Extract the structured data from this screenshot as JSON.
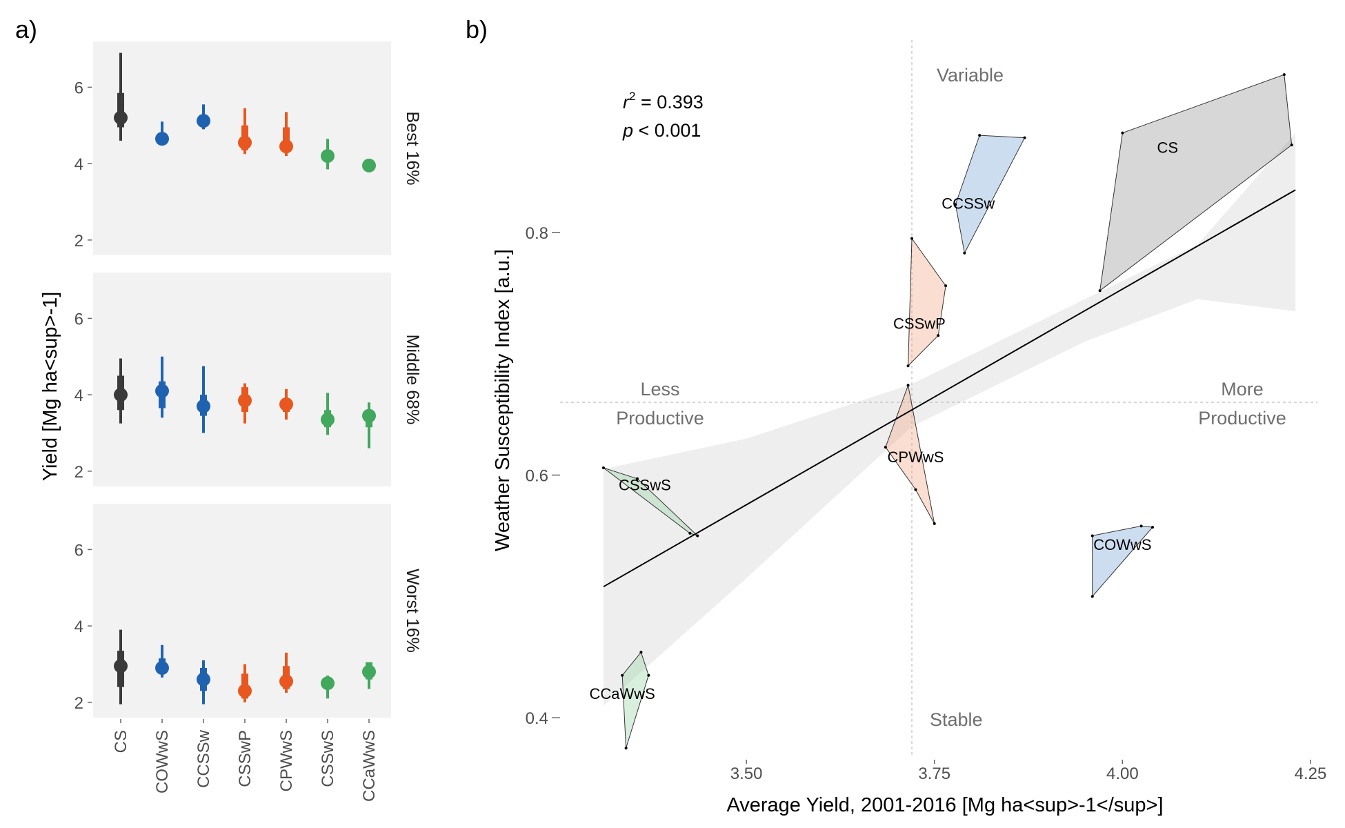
{
  "panel_a_label": "a)",
  "panel_b_label": "b)",
  "chart_data": [
    {
      "type": "pointrange",
      "panel": "a)",
      "ylabel": "Yield [Mg ha<sup>-1]",
      "ylim": [
        1.6,
        7.2
      ],
      "yticks": [
        "2",
        "4",
        "6"
      ],
      "categories": [
        "CS",
        "COWwS",
        "CCSSw",
        "CSSwP",
        "CPWwS",
        "CSSwS",
        "CCaWwS"
      ],
      "category_colors": [
        "#3a3a3a",
        "#1f63b0",
        "#1f63b0",
        "#e8571f",
        "#e8571f",
        "#42a85e",
        "#42a85e"
      ],
      "facets": [
        {
          "label": "Best 16%",
          "median": [
            5.2,
            4.65,
            5.12,
            4.55,
            4.45,
            4.2,
            3.95
          ],
          "inner": [
            [
              4.95,
              5.85
            ],
            [
              4.62,
              4.72
            ],
            [
              5.0,
              5.25
            ],
            [
              4.35,
              5.0
            ],
            [
              4.35,
              4.95
            ],
            [
              4.05,
              4.3
            ],
            [
              3.88,
              4.02
            ]
          ],
          "outer": [
            [
              4.6,
              6.9
            ],
            [
              4.6,
              5.1
            ],
            [
              4.9,
              5.55
            ],
            [
              4.25,
              5.45
            ],
            [
              4.2,
              5.35
            ],
            [
              3.85,
              4.65
            ],
            [
              3.85,
              4.1
            ]
          ]
        },
        {
          "label": "Middle 68%",
          "median": [
            4.0,
            4.1,
            3.7,
            3.85,
            3.75,
            3.35,
            3.45
          ],
          "inner": [
            [
              3.6,
              4.5
            ],
            [
              3.65,
              4.35
            ],
            [
              3.45,
              4.0
            ],
            [
              3.55,
              4.2
            ],
            [
              3.55,
              3.9
            ],
            [
              3.15,
              3.6
            ],
            [
              3.15,
              3.6
            ]
          ],
          "outer": [
            [
              3.25,
              4.95
            ],
            [
              3.4,
              5.0
            ],
            [
              3.0,
              4.75
            ],
            [
              3.25,
              4.3
            ],
            [
              3.35,
              4.15
            ],
            [
              2.95,
              4.05
            ],
            [
              2.6,
              3.8
            ]
          ]
        },
        {
          "label": "Worst 16%",
          "median": [
            2.95,
            2.9,
            2.6,
            2.3,
            2.55,
            2.5,
            2.8
          ],
          "inner": [
            [
              2.4,
              3.35
            ],
            [
              2.75,
              3.15
            ],
            [
              2.3,
              2.9
            ],
            [
              2.1,
              2.75
            ],
            [
              2.35,
              2.95
            ],
            [
              2.35,
              2.65
            ],
            [
              2.6,
              3.05
            ]
          ],
          "outer": [
            [
              1.95,
              3.9
            ],
            [
              2.65,
              3.5
            ],
            [
              1.95,
              3.1
            ],
            [
              2.0,
              3.0
            ],
            [
              2.25,
              3.3
            ],
            [
              2.1,
              2.7
            ],
            [
              2.35,
              3.0
            ]
          ]
        }
      ]
    },
    {
      "type": "scatter",
      "panel": "b)",
      "xlabel": "Average Yield, 2001-2016 [Mg ha<sup>-1</sup>]",
      "ylabel": "Weather Susceptibility Index [a.u.]",
      "xlim": [
        3.3,
        4.25
      ],
      "ylim": [
        0.37,
        0.95
      ],
      "xticks": [
        "3.50",
        "3.75",
        "4.00",
        "4.25"
      ],
      "yticks": [
        "0.4",
        "0.6",
        "0.8"
      ],
      "reference_lines": {
        "x": 3.72,
        "y": 0.66
      },
      "quadrant_labels": {
        "top": "Variable",
        "bottom": "Stable",
        "left": [
          "Less",
          "Productive"
        ],
        "right": [
          "More",
          "Productive"
        ]
      },
      "fit": {
        "line": [
          [
            3.31,
            0.508
          ],
          [
            4.23,
            0.835
          ]
        ],
        "ci_upper": [
          [
            3.31,
            0.605
          ],
          [
            3.5,
            0.63
          ],
          [
            3.72,
            0.675
          ],
          [
            3.95,
            0.745
          ],
          [
            4.1,
            0.79
          ],
          [
            4.23,
            0.882
          ]
        ],
        "ci_lower": [
          [
            3.31,
            0.41
          ],
          [
            3.5,
            0.515
          ],
          [
            3.72,
            0.64
          ],
          [
            3.95,
            0.71
          ],
          [
            4.1,
            0.745
          ],
          [
            4.23,
            0.735
          ]
        ],
        "r2_label": "r",
        "r2_exp": "2",
        "r2_value": " = 0.393",
        "p_label": "p",
        "p_value": " < 0.001"
      },
      "groups": [
        {
          "name": "CS",
          "fill": "#8c8c8c",
          "label_at": [
            4.06,
            0.87
          ],
          "hull": [
            [
              3.97,
              0.752
            ],
            [
              4.0,
              0.882
            ],
            [
              4.215,
              0.93
            ],
            [
              4.225,
              0.872
            ]
          ]
        },
        {
          "name": "CCSSw",
          "fill": "#6f9ed4",
          "label_at": [
            3.795,
            0.824
          ],
          "hull": [
            [
              3.778,
              0.823
            ],
            [
              3.81,
              0.88
            ],
            [
              3.87,
              0.878
            ],
            [
              3.79,
              0.783
            ]
          ]
        },
        {
          "name": "CSSwP",
          "fill": "#f0a07a",
          "label_at": [
            3.73,
            0.725
          ],
          "hull": [
            [
              3.715,
              0.69
            ],
            [
              3.72,
              0.795
            ],
            [
              3.765,
              0.756
            ],
            [
              3.755,
              0.715
            ]
          ]
        },
        {
          "name": "CPWwS",
          "fill": "#f0a07a",
          "label_at": [
            3.725,
            0.615
          ],
          "hull": [
            [
              3.685,
              0.623
            ],
            [
              3.715,
              0.674
            ],
            [
              3.75,
              0.56
            ],
            [
              3.725,
              0.588
            ]
          ]
        },
        {
          "name": "CSSwS",
          "fill": "#8fd1a0",
          "label_at": [
            3.365,
            0.592
          ],
          "hull": [
            [
              3.31,
              0.606
            ],
            [
              3.355,
              0.597
            ],
            [
              3.435,
              0.55
            ],
            [
              3.425,
              0.552
            ]
          ]
        },
        {
          "name": "COWwS",
          "fill": "#6f9ed4",
          "label_at": [
            4.0,
            0.543
          ],
          "hull": [
            [
              3.96,
              0.55
            ],
            [
              4.025,
              0.558
            ],
            [
              4.04,
              0.557
            ],
            [
              3.96,
              0.5
            ]
          ]
        },
        {
          "name": "CCaWwS",
          "fill": "#8fd1a0",
          "label_at": [
            3.335,
            0.42
          ],
          "hull": [
            [
              3.335,
              0.435
            ],
            [
              3.36,
              0.454
            ],
            [
              3.37,
              0.435
            ],
            [
              3.34,
              0.375
            ]
          ]
        }
      ]
    }
  ]
}
